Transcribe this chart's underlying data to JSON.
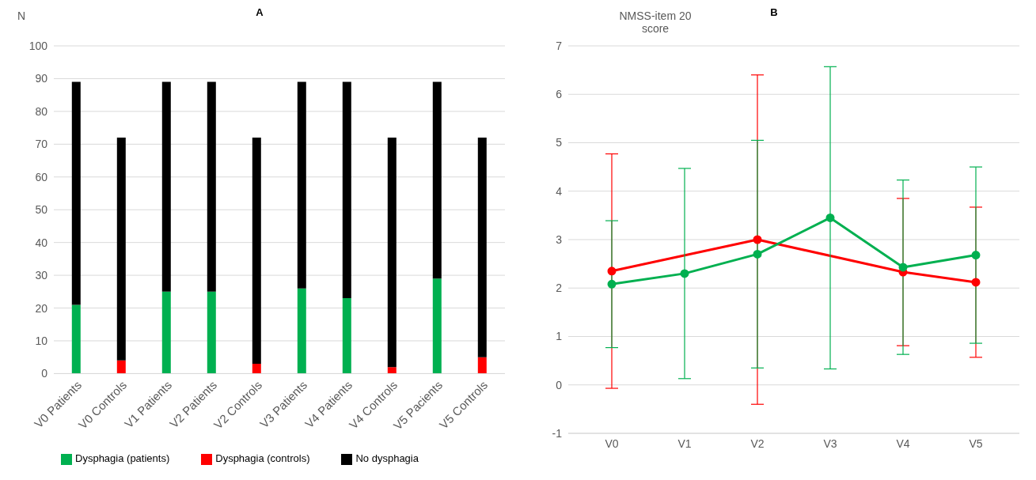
{
  "chart_data": [
    {
      "type": "bar",
      "title": "A",
      "ylabel": "N",
      "stacked": true,
      "categories": [
        "V0 Patients",
        "V0 Controls",
        "V1 Patients",
        "V2 Patients",
        "V2 Controls",
        "V3 Patients",
        "V4 Patients",
        "V4 Controls",
        "V5 Pacients",
        "V5 Controls"
      ],
      "series": [
        {
          "name": "Dysphagia (patients)",
          "color": "#00b050",
          "values": [
            21,
            null,
            25,
            25,
            null,
            26,
            23,
            null,
            29,
            null
          ]
        },
        {
          "name": "Dysphagia (controls)",
          "color": "#ff0000",
          "values": [
            null,
            4,
            null,
            null,
            3,
            null,
            null,
            2,
            null,
            5
          ]
        },
        {
          "name": "No dysphagia",
          "color": "#000000",
          "values": [
            68,
            68,
            64,
            64,
            69,
            63,
            66,
            70,
            60,
            67
          ]
        }
      ],
      "ylim": [
        0,
        100
      ],
      "yticks": [
        0,
        10,
        20,
        30,
        40,
        50,
        60,
        70,
        80,
        90,
        100
      ],
      "grid": "y",
      "legend": "bottom"
    },
    {
      "type": "line",
      "title": "B",
      "ylabel": "NMSS-item 20 score",
      "categories": [
        "V0",
        "V1",
        "V2",
        "V3",
        "V4",
        "V5"
      ],
      "series": [
        {
          "color": "#ff0000",
          "values": [
            2.35,
            null,
            3.0,
            null,
            2.33,
            2.12
          ],
          "errors": [
            2.42,
            null,
            3.4,
            null,
            1.52,
            1.55
          ]
        },
        {
          "color": "#00b050",
          "values": [
            2.08,
            2.3,
            2.7,
            3.45,
            2.43,
            2.68
          ],
          "errors": [
            1.31,
            2.17,
            2.35,
            3.12,
            1.8,
            1.82
          ]
        }
      ],
      "ylim": [
        -1,
        7
      ],
      "yticks": [
        -1,
        0,
        1,
        2,
        3,
        4,
        5,
        6,
        7
      ],
      "grid": "y",
      "marker": "circle"
    }
  ]
}
